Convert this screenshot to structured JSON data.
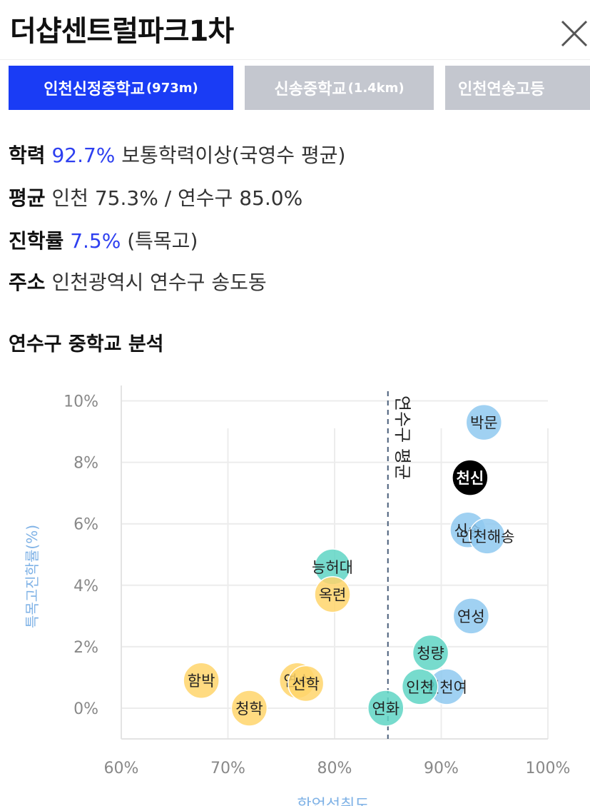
{
  "header": {
    "title": "더샵센트럴파크1차"
  },
  "tabs": [
    {
      "name": "인천신정중학교",
      "distance": "(973m)"
    },
    {
      "name": "신송중학교",
      "distance": "(1.4km)"
    },
    {
      "name": "인천연송고등",
      "distance": ""
    }
  ],
  "info": {
    "achievement": {
      "label": "학력",
      "value": "92.7%",
      "desc": "보통학력이상(국영수 평균)"
    },
    "average": {
      "label": "평균",
      "value": "인천 75.3% / 연수구 85.0%"
    },
    "advancement": {
      "label": "진학률",
      "value": "7.5%",
      "desc": "(특목고)"
    },
    "address": {
      "label": "주소",
      "value": "인천광역시 연수구 송도동"
    }
  },
  "section_title": "연수구 중학교 분석",
  "chart_data": {
    "type": "scatter",
    "xlabel": "학업성취도",
    "ylabel": "특목고진학률(%)",
    "xlim": [
      60,
      100
    ],
    "ylim": [
      -1,
      10.5
    ],
    "x_ticks": [
      "60%",
      "70%",
      "80%",
      "90%",
      "100%"
    ],
    "y_ticks": [
      "0%",
      "2%",
      "4%",
      "6%",
      "8%",
      "10%"
    ],
    "reference_line": {
      "x": 85.0,
      "label": "연수구 평균"
    },
    "colors": {
      "high": "#8fc9f0",
      "mid": "#5fd5c4",
      "low": "#ffd56b",
      "selected": "#000000"
    },
    "points": [
      {
        "label": "박문",
        "x": 94.0,
        "y": 9.3,
        "group": "high"
      },
      {
        "label": "천신",
        "x": 92.7,
        "y": 7.5,
        "group": "selected"
      },
      {
        "label": "신송",
        "x": 92.5,
        "y": 5.8,
        "group": "high"
      },
      {
        "label": "인천해송",
        "x": 94.3,
        "y": 5.6,
        "group": "high"
      },
      {
        "label": "연성",
        "x": 92.8,
        "y": 3.0,
        "group": "high"
      },
      {
        "label": "인천여",
        "x": 90.5,
        "y": 0.7,
        "group": "high"
      },
      {
        "label": "능허대",
        "x": 79.8,
        "y": 4.6,
        "group": "mid"
      },
      {
        "label": "인천",
        "x": 88.0,
        "y": 0.7,
        "group": "mid"
      },
      {
        "label": "연화",
        "x": 84.8,
        "y": 0.0,
        "group": "mid"
      },
      {
        "label": "청량",
        "x": 89.0,
        "y": 1.8,
        "group": "mid"
      },
      {
        "label": "옥련",
        "x": 79.8,
        "y": 3.7,
        "group": "low"
      },
      {
        "label": "함박",
        "x": 67.5,
        "y": 0.9,
        "group": "low"
      },
      {
        "label": "연수",
        "x": 76.5,
        "y": 0.9,
        "group": "low"
      },
      {
        "label": "선학",
        "x": 77.3,
        "y": 0.8,
        "group": "low"
      },
      {
        "label": "청학",
        "x": 72.0,
        "y": 0.0,
        "group": "low"
      }
    ]
  }
}
